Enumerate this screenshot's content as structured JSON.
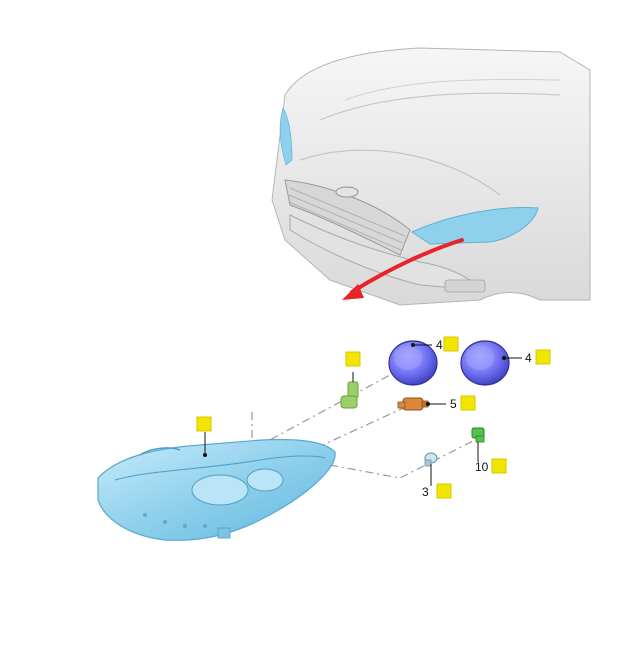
{
  "callouts": [
    {
      "id": "part-headlamp",
      "label": ""
    },
    {
      "id": "part-bulb-socket",
      "label": ""
    },
    {
      "id": "part-cover-left",
      "label": "4"
    },
    {
      "id": "part-cover-right",
      "label": "4"
    },
    {
      "id": "part-bulb-orange",
      "label": "5"
    },
    {
      "id": "part-bulb-green",
      "label": "10"
    },
    {
      "id": "part-bulb-small",
      "label": "3"
    }
  ],
  "colors": {
    "marker": "#f2e600",
    "marker_border": "#d6c800",
    "headlamp": "#8fd0ec",
    "cover": "#6d6ef0",
    "bulb_orange": "#d8873c",
    "bulb_green": "#55c24a",
    "socket_green": "#9ccf6a",
    "arrow": "#e8232a",
    "car_body": "#ececec",
    "leader": "#999999"
  }
}
